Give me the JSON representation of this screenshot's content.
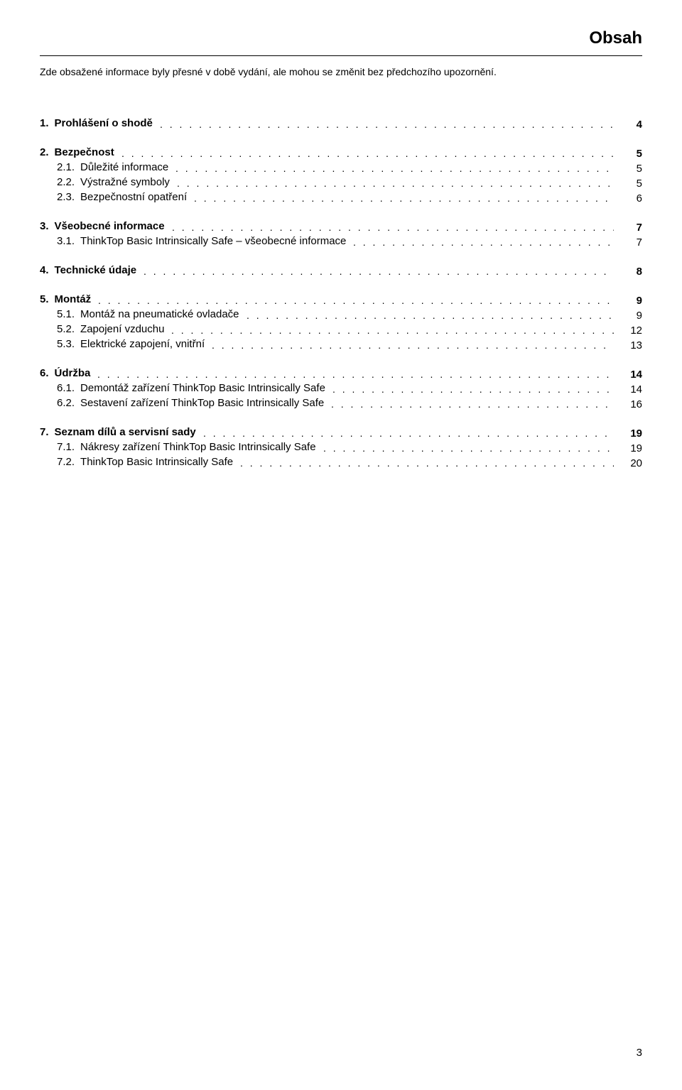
{
  "page": {
    "title": "Obsah",
    "disclaimer": "Zde obsažené informace byly přesné v době vydání, ale mohou se změnit bez předchozího upozornění.",
    "page_number": "3"
  },
  "toc": {
    "s1": {
      "num": "1.",
      "label": "Prohlášení o shodě",
      "page": "4"
    },
    "s2": {
      "num": "2.",
      "label": "Bezpečnost",
      "page": "5"
    },
    "s21": {
      "num": "2.1.",
      "label": "Důležité informace",
      "page": "5"
    },
    "s22": {
      "num": "2.2.",
      "label": "Výstražné symboly",
      "page": "5"
    },
    "s23": {
      "num": "2.3.",
      "label": "Bezpečnostní opatření",
      "page": "6"
    },
    "s3": {
      "num": "3.",
      "label": "Všeobecné informace",
      "page": "7"
    },
    "s31": {
      "num": "3.1.",
      "label": "ThinkTop Basic Intrinsically Safe – všeobecné informace",
      "page": "7"
    },
    "s4": {
      "num": "4.",
      "label": "Technické údaje",
      "page": "8"
    },
    "s5": {
      "num": "5.",
      "label": "Montáž",
      "page": "9"
    },
    "s51": {
      "num": "5.1.",
      "label": "Montáž na pneumatické ovladače",
      "page": "9"
    },
    "s52": {
      "num": "5.2.",
      "label": "Zapojení vzduchu",
      "page": "12"
    },
    "s53": {
      "num": "5.3.",
      "label": "Elektrické zapojení, vnitřní",
      "page": "13"
    },
    "s6": {
      "num": "6.",
      "label": "Údržba",
      "page": "14"
    },
    "s61": {
      "num": "6.1.",
      "label": "Demontáž zařízení ThinkTop Basic Intrinsically Safe",
      "page": "14"
    },
    "s62": {
      "num": "6.2.",
      "label": "Sestavení zařízení ThinkTop Basic Intrinsically Safe",
      "page": "16"
    },
    "s7": {
      "num": "7.",
      "label": "Seznam dílů a servisní sady",
      "page": "19"
    },
    "s71": {
      "num": "7.1.",
      "label": "Nákresy zařízení ThinkTop Basic Intrinsically Safe",
      "page": "19"
    },
    "s72": {
      "num": "7.2.",
      "label": "ThinkTop Basic Intrinsically Safe",
      "page": "20"
    }
  },
  "style": {
    "font_family": "Arial, Helvetica, sans-serif",
    "background_color": "#ffffff",
    "text_color": "#000000",
    "title_fontsize": 24,
    "body_fontsize": 15,
    "disclaimer_fontsize": 14,
    "leader_char": ".",
    "divider_color": "#000000"
  }
}
